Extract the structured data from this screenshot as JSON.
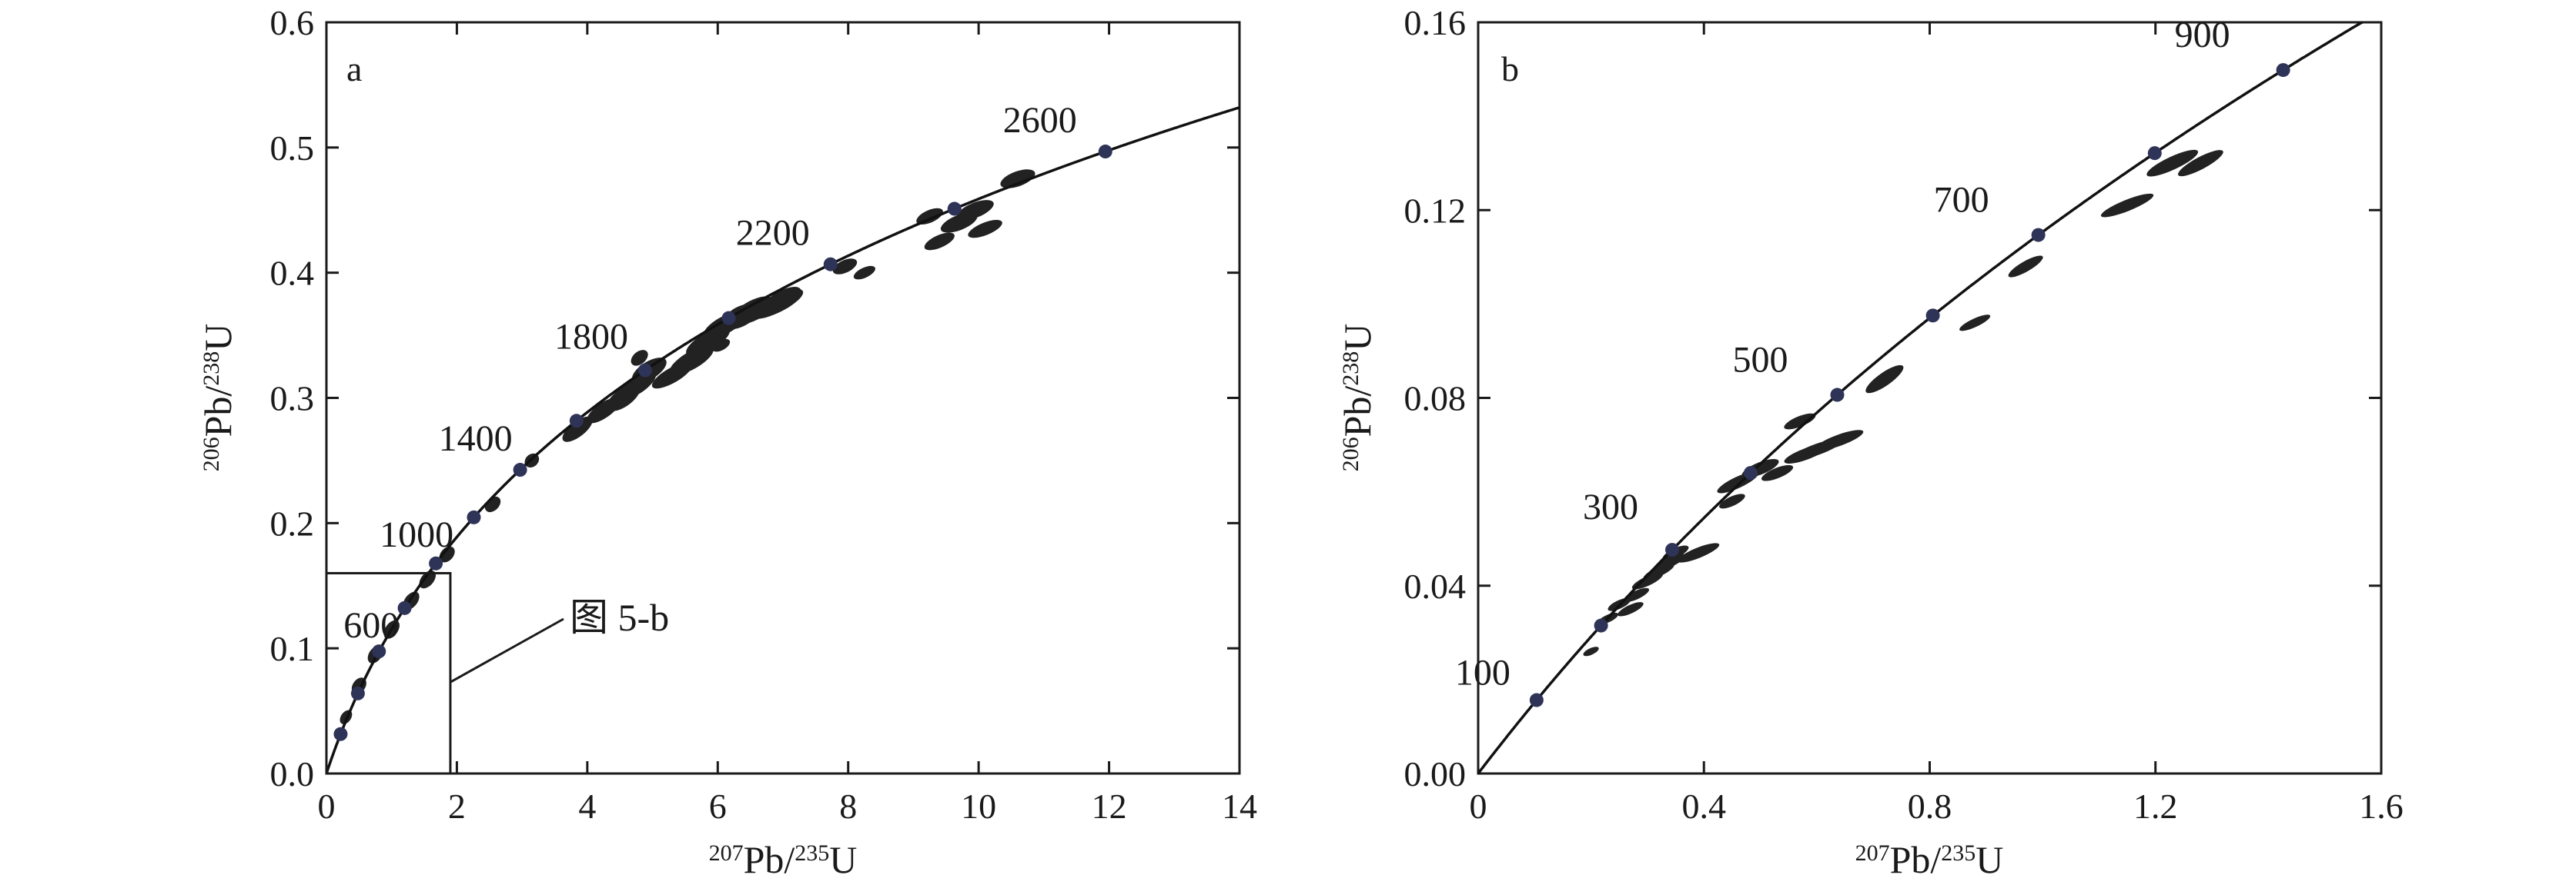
{
  "colors": {
    "axis": "#1a1a1a",
    "ellipse": "#222222",
    "concordia": "#111111",
    "age_marker": "#2e3358"
  },
  "chart_data": [
    {
      "type": "scatter",
      "panel_label": "a",
      "subtype": "concordia-diagram",
      "xlabel": {
        "sup1": "207",
        "main1": "Pb/",
        "sup2": "235",
        "main2": "U"
      },
      "ylabel": {
        "sup1": "206",
        "main1": "Pb/",
        "sup2": "238",
        "main2": "U"
      },
      "xlim": [
        0,
        14
      ],
      "ylim": [
        0,
        0.6
      ],
      "xticks": [
        0,
        2,
        4,
        6,
        8,
        10,
        12,
        14
      ],
      "xtick_labels": [
        "0",
        "2",
        "4",
        "6",
        "8",
        "10",
        "12",
        "14"
      ],
      "yticks": [
        0,
        0.1,
        0.2,
        0.3,
        0.4,
        0.5,
        0.6
      ],
      "ytick_labels": [
        "0.0",
        "0.1",
        "0.2",
        "0.3",
        "0.4",
        "0.5",
        "0.6"
      ],
      "concordia_ages_ma": [
        200,
        400,
        600,
        800,
        1000,
        1200,
        1400,
        1600,
        1800,
        2000,
        2200,
        2400,
        2600
      ],
      "age_labels": [
        "600",
        "1000",
        "1400",
        "1800",
        "2200",
        "2600"
      ],
      "age_label_ages": [
        600,
        1000,
        1400,
        1800,
        2200,
        2600
      ],
      "inset_box": {
        "x": [
          0,
          1.9
        ],
        "y": [
          0,
          0.16
        ],
        "label": "图 5-b"
      },
      "ellipses": [
        {
          "x": 0.3,
          "y": 0.045,
          "rx": 0.12,
          "ry": 0.004,
          "angle": 55
        },
        {
          "x": 0.5,
          "y": 0.07,
          "rx": 0.14,
          "ry": 0.005,
          "angle": 55
        },
        {
          "x": 0.75,
          "y": 0.095,
          "rx": 0.15,
          "ry": 0.005,
          "angle": 55
        },
        {
          "x": 1.0,
          "y": 0.115,
          "rx": 0.16,
          "ry": 0.005,
          "angle": 55
        },
        {
          "x": 1.3,
          "y": 0.138,
          "rx": 0.16,
          "ry": 0.005,
          "angle": 52
        },
        {
          "x": 1.55,
          "y": 0.155,
          "rx": 0.16,
          "ry": 0.005,
          "angle": 50
        },
        {
          "x": 1.85,
          "y": 0.175,
          "rx": 0.14,
          "ry": 0.005,
          "angle": 48
        },
        {
          "x": 2.55,
          "y": 0.215,
          "rx": 0.14,
          "ry": 0.005,
          "angle": 45
        },
        {
          "x": 3.15,
          "y": 0.25,
          "rx": 0.12,
          "ry": 0.005,
          "angle": 42
        },
        {
          "x": 3.85,
          "y": 0.275,
          "rx": 0.28,
          "ry": 0.006,
          "angle": 38
        },
        {
          "x": 4.25,
          "y": 0.29,
          "rx": 0.3,
          "ry": 0.006,
          "angle": 35
        },
        {
          "x": 4.55,
          "y": 0.3,
          "rx": 0.3,
          "ry": 0.007,
          "angle": 35
        },
        {
          "x": 4.75,
          "y": 0.31,
          "rx": 0.35,
          "ry": 0.007,
          "angle": 33
        },
        {
          "x": 4.95,
          "y": 0.322,
          "rx": 0.3,
          "ry": 0.007,
          "angle": 32
        },
        {
          "x": 5.3,
          "y": 0.318,
          "rx": 0.35,
          "ry": 0.006,
          "angle": 30
        },
        {
          "x": 5.6,
          "y": 0.33,
          "rx": 0.38,
          "ry": 0.007,
          "angle": 30
        },
        {
          "x": 5.85,
          "y": 0.345,
          "rx": 0.38,
          "ry": 0.007,
          "angle": 30
        },
        {
          "x": 6.1,
          "y": 0.358,
          "rx": 0.35,
          "ry": 0.007,
          "angle": 28
        },
        {
          "x": 6.35,
          "y": 0.365,
          "rx": 0.3,
          "ry": 0.008,
          "angle": 28
        },
        {
          "x": 6.55,
          "y": 0.37,
          "rx": 0.35,
          "ry": 0.008,
          "angle": 28
        },
        {
          "x": 6.9,
          "y": 0.375,
          "rx": 0.45,
          "ry": 0.007,
          "angle": 26
        },
        {
          "x": 7.0,
          "y": 0.38,
          "rx": 0.3,
          "ry": 0.006,
          "angle": 26
        },
        {
          "x": 6.05,
          "y": 0.342,
          "rx": 0.15,
          "ry": 0.004,
          "angle": 28
        },
        {
          "x": 4.8,
          "y": 0.332,
          "rx": 0.15,
          "ry": 0.005,
          "angle": 40
        },
        {
          "x": 7.95,
          "y": 0.405,
          "rx": 0.2,
          "ry": 0.005,
          "angle": 25
        },
        {
          "x": 8.25,
          "y": 0.4,
          "rx": 0.18,
          "ry": 0.004,
          "angle": 25
        },
        {
          "x": 9.25,
          "y": 0.445,
          "rx": 0.22,
          "ry": 0.005,
          "angle": 24
        },
        {
          "x": 9.7,
          "y": 0.44,
          "rx": 0.3,
          "ry": 0.006,
          "angle": 22
        },
        {
          "x": 9.95,
          "y": 0.45,
          "rx": 0.3,
          "ry": 0.006,
          "angle": 22
        },
        {
          "x": 10.1,
          "y": 0.435,
          "rx": 0.28,
          "ry": 0.005,
          "angle": 22
        },
        {
          "x": 9.4,
          "y": 0.425,
          "rx": 0.25,
          "ry": 0.005,
          "angle": 24
        },
        {
          "x": 10.6,
          "y": 0.475,
          "rx": 0.28,
          "ry": 0.006,
          "angle": 20
        }
      ]
    },
    {
      "type": "scatter",
      "panel_label": "b",
      "subtype": "concordia-diagram",
      "xlabel": {
        "sup1": "207",
        "main1": "Pb/",
        "sup2": "235",
        "main2": "U"
      },
      "ylabel": {
        "sup1": "206",
        "main1": "Pb/",
        "sup2": "238",
        "main2": "U"
      },
      "xlim": [
        0,
        1.6
      ],
      "ylim": [
        0,
        0.16
      ],
      "xticks": [
        0,
        0.4,
        0.8,
        1.2,
        1.6
      ],
      "xtick_labels": [
        "0",
        "0.4",
        "0.8",
        "1.2",
        "1.6"
      ],
      "yticks": [
        0,
        0.04,
        0.08,
        0.12,
        0.16
      ],
      "ytick_labels": [
        "0.00",
        "0.04",
        "0.08",
        "0.12",
        "0.16"
      ],
      "concordia_ages_ma": [
        100,
        200,
        300,
        400,
        500,
        600,
        700,
        800,
        900
      ],
      "age_labels": [
        "100",
        "300",
        "500",
        "700",
        "900"
      ],
      "age_label_ages": [
        100,
        300,
        500,
        700,
        900
      ],
      "ellipses": [
        {
          "x": 0.2,
          "y": 0.026,
          "rx": 0.015,
          "ry": 0.0007,
          "angle": 25
        },
        {
          "x": 0.23,
          "y": 0.033,
          "rx": 0.02,
          "ry": 0.0008,
          "angle": 25
        },
        {
          "x": 0.25,
          "y": 0.036,
          "rx": 0.022,
          "ry": 0.0009,
          "angle": 25
        },
        {
          "x": 0.27,
          "y": 0.035,
          "rx": 0.025,
          "ry": 0.0009,
          "angle": 25
        },
        {
          "x": 0.28,
          "y": 0.038,
          "rx": 0.025,
          "ry": 0.0009,
          "angle": 25
        },
        {
          "x": 0.3,
          "y": 0.041,
          "rx": 0.03,
          "ry": 0.001,
          "angle": 25
        },
        {
          "x": 0.32,
          "y": 0.043,
          "rx": 0.03,
          "ry": 0.001,
          "angle": 25
        },
        {
          "x": 0.34,
          "y": 0.045,
          "rx": 0.03,
          "ry": 0.001,
          "angle": 25
        },
        {
          "x": 0.35,
          "y": 0.047,
          "rx": 0.025,
          "ry": 0.001,
          "angle": 25
        },
        {
          "x": 0.39,
          "y": 0.047,
          "rx": 0.04,
          "ry": 0.0011,
          "angle": 22
        },
        {
          "x": 0.45,
          "y": 0.058,
          "rx": 0.025,
          "ry": 0.001,
          "angle": 25
        },
        {
          "x": 0.46,
          "y": 0.062,
          "rx": 0.04,
          "ry": 0.0012,
          "angle": 25
        },
        {
          "x": 0.5,
          "y": 0.065,
          "rx": 0.035,
          "ry": 0.0013,
          "angle": 22
        },
        {
          "x": 0.53,
          "y": 0.064,
          "rx": 0.03,
          "ry": 0.0011,
          "angle": 22
        },
        {
          "x": 0.58,
          "y": 0.068,
          "rx": 0.04,
          "ry": 0.0012,
          "angle": 20
        },
        {
          "x": 0.6,
          "y": 0.069,
          "rx": 0.05,
          "ry": 0.0012,
          "angle": 20
        },
        {
          "x": 0.64,
          "y": 0.071,
          "rx": 0.045,
          "ry": 0.0012,
          "angle": 20
        },
        {
          "x": 0.57,
          "y": 0.075,
          "rx": 0.03,
          "ry": 0.0011,
          "angle": 22
        },
        {
          "x": 0.72,
          "y": 0.084,
          "rx": 0.04,
          "ry": 0.0014,
          "angle": 35
        },
        {
          "x": 0.88,
          "y": 0.096,
          "rx": 0.03,
          "ry": 0.0009,
          "angle": 25
        },
        {
          "x": 0.97,
          "y": 0.108,
          "rx": 0.035,
          "ry": 0.0011,
          "angle": 30
        },
        {
          "x": 1.15,
          "y": 0.121,
          "rx": 0.05,
          "ry": 0.0012,
          "angle": 22
        },
        {
          "x": 1.23,
          "y": 0.13,
          "rx": 0.05,
          "ry": 0.0014,
          "angle": 25
        },
        {
          "x": 1.28,
          "y": 0.13,
          "rx": 0.045,
          "ry": 0.0013,
          "angle": 28
        }
      ]
    }
  ],
  "callout": {
    "label": "图 5-b"
  }
}
